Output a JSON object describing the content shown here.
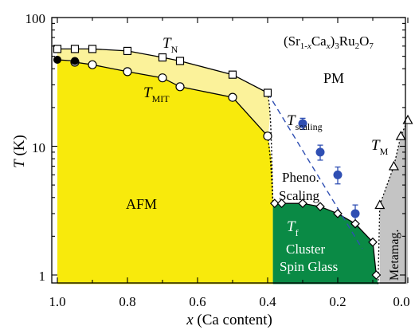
{
  "chart_data": {
    "type": "phase-diagram",
    "title": "(Sr1-xCax)3Ru2O7",
    "formula": {
      "a": "(Sr",
      "b": "1-",
      "c": "x",
      "d": "Ca",
      "e": "x",
      "f": ")",
      "g": "3",
      "h": "Ru",
      "i": "2",
      "j": "O",
      "k": "7"
    },
    "xlabel": {
      "var": "x",
      "rest": " (Ca content)"
    },
    "ylabel": {
      "var": "T",
      "rest": " (K)"
    },
    "x_axis": {
      "range": [
        1.0,
        0.0
      ],
      "reversed": true,
      "ticks": [
        "1.0",
        "0.8",
        "0.6",
        "0.4",
        "0.2",
        "0.0"
      ]
    },
    "y_axis": {
      "scale": "log",
      "range": [
        0.85,
        100
      ],
      "ticks": [
        "1",
        "10",
        "100"
      ]
    },
    "series": [
      {
        "name": "TN",
        "marker": "open-square",
        "x": [
          1.0,
          0.95,
          0.9,
          0.8,
          0.7,
          0.65,
          0.5,
          0.4
        ],
        "y": [
          57,
          57,
          57,
          55,
          49,
          46,
          36,
          26
        ]
      },
      {
        "name": "TMIT",
        "marker": "open-circle",
        "x": [
          0.95,
          0.9,
          0.8,
          0.7,
          0.65,
          0.5,
          0.4
        ],
        "y": [
          45,
          43,
          38,
          34,
          29,
          24,
          12
        ]
      },
      {
        "name": "TMIT-filled",
        "marker": "filled-circle",
        "x": [
          1.0,
          0.95
        ],
        "y": [
          47,
          46
        ]
      },
      {
        "name": "Tscaling",
        "marker": "filled-circle-errorbar",
        "x": [
          0.3,
          0.25,
          0.2,
          0.15
        ],
        "y": [
          15,
          9,
          6,
          3
        ],
        "err": [
          1.5,
          1.2,
          0.9,
          0.5
        ]
      },
      {
        "name": "Tf",
        "marker": "open-diamond",
        "x": [
          0.38,
          0.36,
          0.3,
          0.25,
          0.2,
          0.15,
          0.1,
          0.09
        ],
        "y": [
          3.6,
          3.6,
          3.6,
          3.4,
          3.0,
          2.5,
          1.8,
          1.0
        ]
      },
      {
        "name": "TM",
        "marker": "open-triangle",
        "x": [
          0.08,
          0.04,
          0.02,
          0.0
        ],
        "y": [
          3.5,
          7,
          12,
          16
        ]
      }
    ],
    "labels": {
      "tn": {
        "main": "T",
        "sub": "N"
      },
      "tmit": {
        "main": "T",
        "sub": "MIT"
      },
      "tscaling": {
        "main": "T",
        "sub": "scaling"
      },
      "tf": {
        "main": "T",
        "sub": "f"
      },
      "tm": {
        "main": "T",
        "sub": "M"
      },
      "pm": "PM",
      "afm": "AFM",
      "pheno": "Pheno.",
      "scaling": "Scaling",
      "cluster": "Cluster",
      "spin_glass": "Spin Glass",
      "metamag": "Metamag."
    },
    "colors": {
      "afm": "#f8ea0c",
      "tn_band": "#fbf29a",
      "spin_glass": "#0a8a45",
      "metamag": "#c4c4c4",
      "scaling": "#2f4fb3"
    }
  }
}
